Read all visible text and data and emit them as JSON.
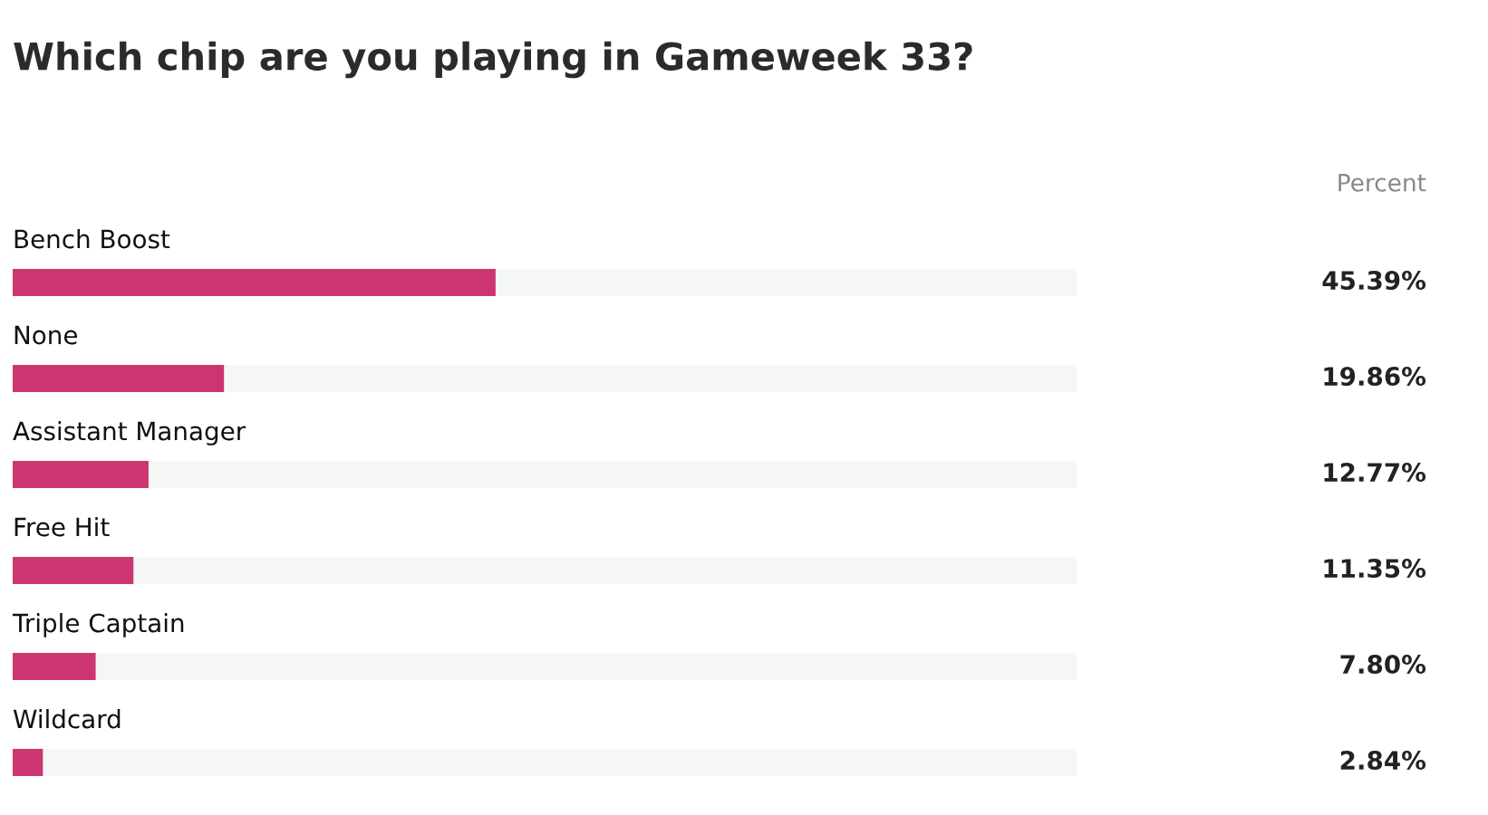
{
  "chart_data": {
    "type": "bar",
    "orientation": "horizontal",
    "title": "Which chip are you playing in Gameweek 33?",
    "categories": [
      "Bench Boost",
      "None",
      "Assistant Manager",
      "Free Hit",
      "Triple Captain",
      "Wildcard"
    ],
    "values": [
      45.39,
      19.86,
      12.77,
      11.35,
      7.8,
      2.84
    ],
    "value_labels": [
      "45.39%",
      "19.86%",
      "12.77%",
      "11.35%",
      "7.80%",
      "2.84%"
    ],
    "color": "#cc3570",
    "xlim": [
      0,
      100
    ],
    "annotations": [
      "Percent"
    ]
  }
}
